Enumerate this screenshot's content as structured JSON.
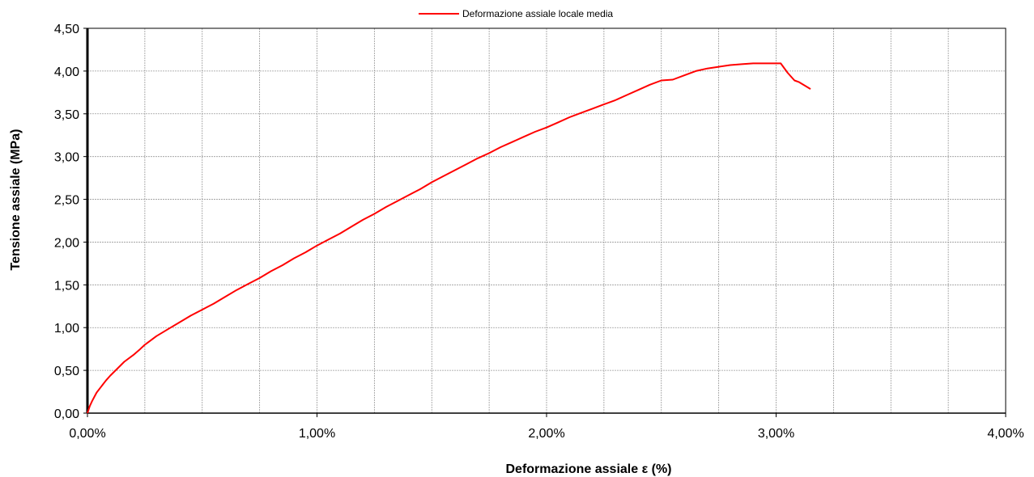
{
  "chart_data": {
    "type": "line",
    "xlabel": "Deformazione assiale ε (%)",
    "ylabel": "Tensione assiale (MPa)",
    "xlim": [
      0,
      4
    ],
    "ylim": [
      0,
      4.5
    ],
    "x_ticks": [
      "0,00%",
      "1,00%",
      "2,00%",
      "3,00%",
      "4,00%"
    ],
    "y_ticks": [
      "0,00",
      "0,50",
      "1,00",
      "1,50",
      "2,00",
      "2,50",
      "3,00",
      "3,50",
      "4,00",
      "4,50"
    ],
    "grid": true,
    "legend": "top-center",
    "series": [
      {
        "name": "Deformazione assiale locale media",
        "color": "#ff0000",
        "x": [
          0,
          0.01,
          0.02,
          0.03,
          0.04,
          0.06,
          0.08,
          0.1,
          0.13,
          0.16,
          0.2,
          0.23,
          0.25,
          0.3,
          0.35,
          0.4,
          0.45,
          0.5,
          0.55,
          0.6,
          0.65,
          0.7,
          0.75,
          0.8,
          0.85,
          0.9,
          0.95,
          1.0,
          1.05,
          1.1,
          1.15,
          1.2,
          1.25,
          1.3,
          1.35,
          1.4,
          1.45,
          1.5,
          1.55,
          1.6,
          1.65,
          1.7,
          1.75,
          1.8,
          1.85,
          1.9,
          1.95,
          2.0,
          2.05,
          2.1,
          2.15,
          2.2,
          2.25,
          2.3,
          2.35,
          2.4,
          2.45,
          2.5,
          2.55,
          2.6,
          2.65,
          2.7,
          2.75,
          2.8,
          2.85,
          2.9,
          2.95,
          3.0,
          3.02,
          3.05,
          3.08,
          3.1,
          3.15
        ],
        "y": [
          0,
          0.08,
          0.14,
          0.19,
          0.24,
          0.31,
          0.38,
          0.44,
          0.52,
          0.6,
          0.68,
          0.75,
          0.8,
          0.9,
          0.98,
          1.06,
          1.14,
          1.21,
          1.28,
          1.36,
          1.44,
          1.51,
          1.58,
          1.66,
          1.73,
          1.81,
          1.88,
          1.96,
          2.03,
          2.1,
          2.18,
          2.26,
          2.33,
          2.41,
          2.48,
          2.55,
          2.62,
          2.7,
          2.77,
          2.84,
          2.91,
          2.98,
          3.04,
          3.11,
          3.17,
          3.23,
          3.29,
          3.34,
          3.4,
          3.46,
          3.51,
          3.56,
          3.61,
          3.66,
          3.72,
          3.78,
          3.84,
          3.89,
          3.9,
          3.95,
          4.0,
          4.03,
          4.05,
          4.07,
          4.08,
          4.09,
          4.09,
          4.09,
          4.09,
          3.98,
          3.89,
          3.87,
          3.79
        ]
      }
    ]
  }
}
